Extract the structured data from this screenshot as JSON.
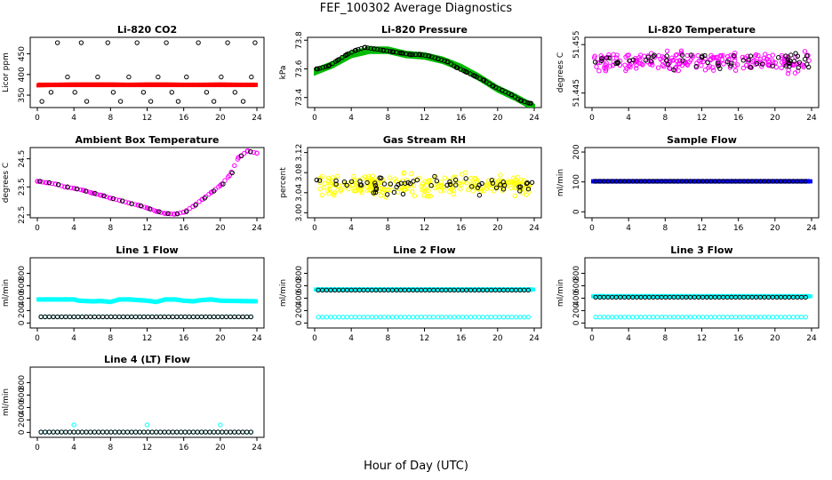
{
  "figure": {
    "title": "FEF_100302  Average Diagnostics",
    "xlabel": "Hour of Day (UTC)"
  },
  "chart_data": [
    {
      "type": "scatter",
      "title": "Li-820 CO2",
      "ylabel": "Licor ppm",
      "xlim": [
        0,
        24
      ],
      "ylim": [
        320,
        490
      ],
      "yticks": [
        "350",
        "400",
        "450"
      ],
      "ytick_values": [
        350,
        400,
        450
      ],
      "xticks": [
        "0",
        "4",
        "8",
        "12",
        "16",
        "20",
        "24"
      ],
      "series": [
        {
          "name": "",
          "color": "#ff0000",
          "style": "band",
          "center": 375,
          "width": 6,
          "x": [
            0,
            2,
            4,
            6,
            8,
            10,
            12,
            14,
            16,
            18,
            20,
            22,
            24
          ],
          "y": [
            374,
            375,
            376,
            376,
            376,
            375,
            376,
            376,
            375,
            375,
            376,
            375,
            375
          ]
        },
        {
          "name": "",
          "color": "#000000",
          "style": "points",
          "x": [
            0.5,
            1.5,
            2.2,
            3.3,
            4.1,
            4.8,
            5.4,
            6.6,
            7.7,
            8.3,
            9.1,
            10.0,
            10.9,
            11.6,
            12.4,
            13.2,
            14.1,
            14.7,
            15.4,
            16.3,
            17.6,
            18.5,
            19.3,
            20.1,
            20.8,
            21.6,
            22.5,
            23.4,
            23.8
          ],
          "y": [
            335,
            357,
            477,
            394,
            357,
            477,
            335,
            394,
            477,
            357,
            335,
            394,
            477,
            357,
            335,
            394,
            477,
            357,
            335,
            394,
            477,
            357,
            335,
            394,
            477,
            357,
            335,
            394,
            477
          ]
        }
      ]
    },
    {
      "type": "scatter",
      "title": "Li-820 Pressure",
      "ylabel": "kPa",
      "xlim": [
        0,
        24
      ],
      "ylim": [
        73.33,
        73.82
      ],
      "yticks": [
        "73.4",
        "73.6",
        "73.8"
      ],
      "ytick_values": [
        73.4,
        73.6,
        73.8
      ],
      "xticks": [
        "0",
        "4",
        "8",
        "12",
        "16",
        "20",
        "24"
      ],
      "series": [
        {
          "name": "",
          "color": "#00bb00",
          "style": "band",
          "width": 0.04,
          "x": [
            0,
            2,
            4,
            6,
            8,
            10,
            12,
            14,
            16,
            18,
            20,
            22,
            24
          ],
          "y": [
            73.58,
            73.63,
            73.7,
            73.73,
            73.73,
            73.7,
            73.69,
            73.66,
            73.61,
            73.54,
            73.46,
            73.4,
            73.33
          ]
        },
        {
          "name": "",
          "color": "#000000",
          "style": "curve",
          "x": [
            0.3,
            1.5,
            2.5,
            3.5,
            4.5,
            5.5,
            6.5,
            7.5,
            8.5,
            9.5,
            10.5,
            11.5,
            12.5,
            13.5,
            14.5,
            15.5,
            16.5,
            17.5,
            18.5,
            19.5,
            20.5,
            21.5,
            22.5,
            23.5
          ],
          "y": [
            73.6,
            73.62,
            73.66,
            73.7,
            73.73,
            73.75,
            73.74,
            73.73,
            73.72,
            73.71,
            73.7,
            73.7,
            73.69,
            73.67,
            73.65,
            73.61,
            73.58,
            73.55,
            73.52,
            73.48,
            73.45,
            73.42,
            73.38,
            73.36
          ]
        }
      ]
    },
    {
      "type": "scatter",
      "title": "Li-820 Temperature",
      "ylabel": "degrees C",
      "xlim": [
        0,
        24
      ],
      "ylim": [
        51.442,
        51.4565
      ],
      "yticks": [
        "51.445",
        "51.455"
      ],
      "ytick_values": [
        51.445,
        51.455
      ],
      "xticks": [
        "0",
        "4",
        "8",
        "12",
        "16",
        "20",
        "24"
      ],
      "series": [
        {
          "name": "",
          "color": "#ff00ff",
          "style": "noise",
          "center": 51.4515,
          "spread": 0.003,
          "count": 220
        },
        {
          "name": "",
          "color": "#000000",
          "style": "noise",
          "center": 51.4515,
          "spread": 0.0025,
          "count": 60
        }
      ]
    },
    {
      "type": "scatter",
      "title": "Ambient Box Temperature",
      "ylabel": "degrees C",
      "xlim": [
        0,
        24
      ],
      "ylim": [
        22.4,
        24.9
      ],
      "yticks": [
        "22.5",
        "23.5",
        "24.5"
      ],
      "ytick_values": [
        22.5,
        23.5,
        24.5
      ],
      "xticks": [
        "0",
        "4",
        "8",
        "12",
        "16",
        "20",
        "24"
      ],
      "series": [
        {
          "name": "",
          "color": "#ff00ff",
          "style": "curve",
          "x": [
            0,
            1,
            2,
            3,
            4,
            5,
            6,
            7,
            8,
            9,
            10,
            11,
            12,
            13,
            14,
            15,
            16,
            17,
            18,
            19,
            20,
            21,
            22,
            23,
            24
          ],
          "y": [
            23.7,
            23.65,
            23.6,
            23.5,
            23.45,
            23.38,
            23.28,
            23.2,
            23.1,
            23.02,
            22.93,
            22.85,
            22.75,
            22.63,
            22.55,
            22.53,
            22.6,
            22.8,
            23.05,
            23.3,
            23.55,
            23.9,
            24.55,
            24.78,
            24.7
          ]
        },
        {
          "name": "",
          "color": "#000000",
          "style": "points-on-curve",
          "x": [
            0.3,
            1.3,
            2.3,
            3.3,
            4.3,
            5.3,
            6.3,
            7.3,
            8.3,
            9.3,
            10.3,
            11.3,
            12.3,
            13.3,
            14.3,
            15.3,
            16.3,
            17.3,
            18.3,
            19.3,
            20.3,
            21.3,
            22.3,
            23.3
          ],
          "y": [
            23.7,
            23.65,
            23.58,
            23.5,
            23.43,
            23.35,
            23.27,
            23.18,
            23.08,
            23.0,
            22.9,
            22.83,
            22.72,
            22.62,
            22.55,
            22.54,
            22.62,
            22.85,
            23.1,
            23.35,
            23.6,
            24.0,
            24.6,
            24.75
          ]
        }
      ]
    },
    {
      "type": "scatter",
      "title": "Gas Stream RH",
      "ylabel": "percent",
      "xlim": [
        0,
        24
      ],
      "ylim": [
        2.99,
        3.13
      ],
      "yticks": [
        "3.00",
        "3.04",
        "3.08",
        "3.12"
      ],
      "ytick_values": [
        3.0,
        3.04,
        3.08,
        3.12
      ],
      "xticks": [
        "0",
        "4",
        "8",
        "12",
        "16",
        "20",
        "24"
      ],
      "series": [
        {
          "name": "",
          "color": "#ffff00",
          "style": "noise",
          "center": 3.055,
          "spread": 0.03,
          "count": 260
        },
        {
          "name": "",
          "color": "#000000",
          "style": "noise",
          "center": 3.055,
          "spread": 0.025,
          "count": 60
        }
      ]
    },
    {
      "type": "scatter",
      "title": "Sample Flow",
      "ylabel": "ml/min",
      "xlim": [
        0,
        24
      ],
      "ylim": [
        -20,
        215
      ],
      "yticks": [
        "0",
        "100",
        "200"
      ],
      "ytick_values": [
        0,
        100,
        200
      ],
      "xticks": [
        "0",
        "4",
        "8",
        "12",
        "16",
        "20",
        "24"
      ],
      "series": [
        {
          "name": "",
          "color": "#0000ff",
          "style": "band",
          "width": 8,
          "x": [
            0,
            24
          ],
          "y": [
            102,
            102
          ]
        },
        {
          "name": "",
          "color": "#000000",
          "style": "flatpoints",
          "value": 102
        }
      ]
    },
    {
      "type": "scatter",
      "title": "Line 1 Flow",
      "ylabel": "ml/min",
      "xlim": [
        0,
        24
      ],
      "ylim": [
        -80,
        1050
      ],
      "yticks": [
        "0",
        "200",
        "400",
        "600",
        "800"
      ],
      "ytick_values": [
        0,
        200,
        400,
        600,
        800
      ],
      "xticks": [
        "0",
        "4",
        "8",
        "12",
        "16",
        "20",
        "24"
      ],
      "series": [
        {
          "name": "",
          "color": "#00ffff",
          "style": "band",
          "width": 40,
          "x": [
            0,
            4,
            4.5,
            6,
            7,
            8,
            9,
            10,
            11,
            12,
            13,
            14,
            15,
            16,
            17,
            18,
            19,
            20,
            22,
            24
          ],
          "y": [
            380,
            380,
            360,
            350,
            355,
            340,
            380,
            380,
            370,
            360,
            340,
            380,
            380,
            360,
            350,
            370,
            380,
            360,
            355,
            350
          ]
        },
        {
          "name": "",
          "color": "#00ffff",
          "style": "flatpoints",
          "value": 100
        },
        {
          "name": "",
          "color": "#000000",
          "style": "flatpoints",
          "value": 100
        }
      ]
    },
    {
      "type": "scatter",
      "title": "Line 2 Flow",
      "ylabel": "ml/min",
      "xlim": [
        0,
        24
      ],
      "ylim": [
        -80,
        1050
      ],
      "yticks": [
        "0",
        "200",
        "400",
        "600",
        "800"
      ],
      "ytick_values": [
        0,
        200,
        400,
        600,
        800
      ],
      "xticks": [
        "0",
        "4",
        "8",
        "12",
        "16",
        "20",
        "24"
      ],
      "series": [
        {
          "name": "",
          "color": "#00ffff",
          "style": "band",
          "width": 30,
          "x": [
            0,
            24
          ],
          "y": [
            540,
            540
          ]
        },
        {
          "name": "",
          "color": "#00ffff",
          "style": "flatpoints",
          "value": 95
        },
        {
          "name": "",
          "color": "#000000",
          "style": "flatpoints",
          "value": 530
        }
      ]
    },
    {
      "type": "scatter",
      "title": "Line 3 Flow",
      "ylabel": "ml/min",
      "xlim": [
        0,
        24
      ],
      "ylim": [
        -80,
        1050
      ],
      "yticks": [
        "0",
        "200",
        "400",
        "600",
        "800"
      ],
      "ytick_values": [
        0,
        200,
        400,
        600,
        800
      ],
      "xticks": [
        "0",
        "4",
        "8",
        "12",
        "16",
        "20",
        "24"
      ],
      "series": [
        {
          "name": "",
          "color": "#00ffff",
          "style": "band",
          "width": 30,
          "x": [
            0,
            24
          ],
          "y": [
            430,
            430
          ]
        },
        {
          "name": "",
          "color": "#00ffff",
          "style": "flatpoints",
          "value": 95
        },
        {
          "name": "",
          "color": "#000000",
          "style": "flatpoints",
          "value": 415
        }
      ]
    },
    {
      "type": "scatter",
      "title": "Line 4 (LT) Flow",
      "ylabel": "ml/min",
      "xlim": [
        0,
        24
      ],
      "ylim": [
        -80,
        1050
      ],
      "yticks": [
        "0",
        "200",
        "400",
        "600",
        "800"
      ],
      "ytick_values": [
        0,
        200,
        400,
        600,
        800
      ],
      "xticks": [
        "0",
        "4",
        "8",
        "12",
        "16",
        "20",
        "24"
      ],
      "series": [
        {
          "name": "",
          "color": "#00ffff",
          "style": "flatpoints",
          "value": 5
        },
        {
          "name": "",
          "color": "#000000",
          "style": "flatpoints",
          "value": 5
        },
        {
          "name": "",
          "color": "#00ffff",
          "style": "points",
          "x": [
            4,
            12,
            20
          ],
          "y": [
            120,
            120,
            120
          ]
        }
      ]
    }
  ]
}
